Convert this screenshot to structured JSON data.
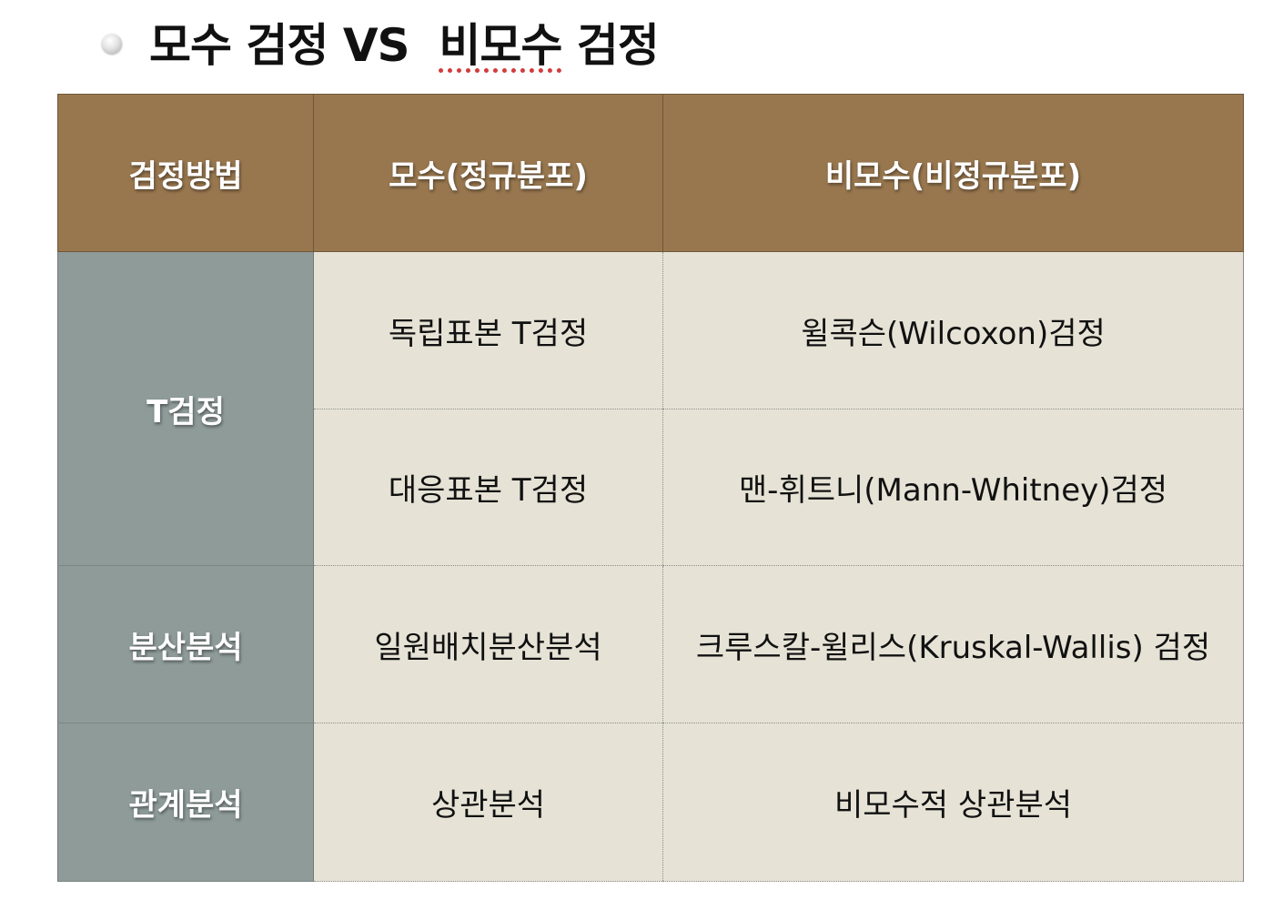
{
  "title": {
    "part1": "모수 검정 VS  ",
    "part2": "비모수",
    "part3": " 검정"
  },
  "table": {
    "headers": [
      "검정방법",
      "모수(정규분포)",
      "비모수(비정규분포)"
    ],
    "groups": [
      {
        "method": "T검정",
        "rows": [
          {
            "parametric": "독립표본 T검정",
            "nonparametric": "윌콕슨(Wilcoxon)검정"
          },
          {
            "parametric": "대응표본 T검정",
            "nonparametric": "맨-휘트니(Mann-Whitney)검정"
          }
        ]
      },
      {
        "method": "분산분석",
        "rows": [
          {
            "parametric": "일원배치분산분석",
            "nonparametric": "크루스칼-윌리스(Kruskal-Wallis) 검정"
          }
        ]
      },
      {
        "method": "관계분석",
        "rows": [
          {
            "parametric": "상관분석",
            "nonparametric": "비모수적 상관분석"
          }
        ]
      }
    ]
  },
  "colors": {
    "header_bg": "#98774f",
    "row_header_bg": "#8e9b99",
    "cell_bg": "#e6e3d6"
  },
  "icons": {
    "bullet": "bullet-icon"
  }
}
